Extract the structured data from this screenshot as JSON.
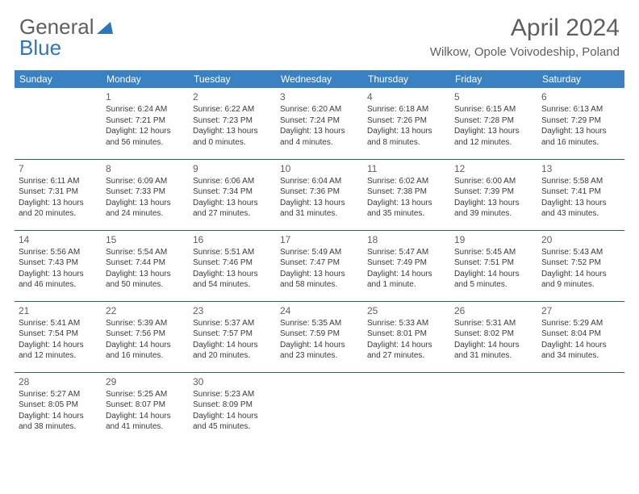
{
  "brand": {
    "part1": "General",
    "part2": "Blue"
  },
  "title": "April 2024",
  "location": "Wilkow, Opole Voivodeship, Poland",
  "colors": {
    "header_bg": "#3a81c4",
    "header_text": "#ffffff",
    "accent": "#2d76ba",
    "text_gray": "#5f5f5f",
    "body_text": "#3a3a3a",
    "border": "#285e8e"
  },
  "day_headers": [
    "Sunday",
    "Monday",
    "Tuesday",
    "Wednesday",
    "Thursday",
    "Friday",
    "Saturday"
  ],
  "weeks": [
    [
      null,
      {
        "n": "1",
        "sr": "6:24 AM",
        "ss": "7:21 PM",
        "dl": "12 hours and 56 minutes."
      },
      {
        "n": "2",
        "sr": "6:22 AM",
        "ss": "7:23 PM",
        "dl": "13 hours and 0 minutes."
      },
      {
        "n": "3",
        "sr": "6:20 AM",
        "ss": "7:24 PM",
        "dl": "13 hours and 4 minutes."
      },
      {
        "n": "4",
        "sr": "6:18 AM",
        "ss": "7:26 PM",
        "dl": "13 hours and 8 minutes."
      },
      {
        "n": "5",
        "sr": "6:15 AM",
        "ss": "7:28 PM",
        "dl": "13 hours and 12 minutes."
      },
      {
        "n": "6",
        "sr": "6:13 AM",
        "ss": "7:29 PM",
        "dl": "13 hours and 16 minutes."
      }
    ],
    [
      {
        "n": "7",
        "sr": "6:11 AM",
        "ss": "7:31 PM",
        "dl": "13 hours and 20 minutes."
      },
      {
        "n": "8",
        "sr": "6:09 AM",
        "ss": "7:33 PM",
        "dl": "13 hours and 24 minutes."
      },
      {
        "n": "9",
        "sr": "6:06 AM",
        "ss": "7:34 PM",
        "dl": "13 hours and 27 minutes."
      },
      {
        "n": "10",
        "sr": "6:04 AM",
        "ss": "7:36 PM",
        "dl": "13 hours and 31 minutes."
      },
      {
        "n": "11",
        "sr": "6:02 AM",
        "ss": "7:38 PM",
        "dl": "13 hours and 35 minutes."
      },
      {
        "n": "12",
        "sr": "6:00 AM",
        "ss": "7:39 PM",
        "dl": "13 hours and 39 minutes."
      },
      {
        "n": "13",
        "sr": "5:58 AM",
        "ss": "7:41 PM",
        "dl": "13 hours and 43 minutes."
      }
    ],
    [
      {
        "n": "14",
        "sr": "5:56 AM",
        "ss": "7:43 PM",
        "dl": "13 hours and 46 minutes."
      },
      {
        "n": "15",
        "sr": "5:54 AM",
        "ss": "7:44 PM",
        "dl": "13 hours and 50 minutes."
      },
      {
        "n": "16",
        "sr": "5:51 AM",
        "ss": "7:46 PM",
        "dl": "13 hours and 54 minutes."
      },
      {
        "n": "17",
        "sr": "5:49 AM",
        "ss": "7:47 PM",
        "dl": "13 hours and 58 minutes."
      },
      {
        "n": "18",
        "sr": "5:47 AM",
        "ss": "7:49 PM",
        "dl": "14 hours and 1 minute."
      },
      {
        "n": "19",
        "sr": "5:45 AM",
        "ss": "7:51 PM",
        "dl": "14 hours and 5 minutes."
      },
      {
        "n": "20",
        "sr": "5:43 AM",
        "ss": "7:52 PM",
        "dl": "14 hours and 9 minutes."
      }
    ],
    [
      {
        "n": "21",
        "sr": "5:41 AM",
        "ss": "7:54 PM",
        "dl": "14 hours and 12 minutes."
      },
      {
        "n": "22",
        "sr": "5:39 AM",
        "ss": "7:56 PM",
        "dl": "14 hours and 16 minutes."
      },
      {
        "n": "23",
        "sr": "5:37 AM",
        "ss": "7:57 PM",
        "dl": "14 hours and 20 minutes."
      },
      {
        "n": "24",
        "sr": "5:35 AM",
        "ss": "7:59 PM",
        "dl": "14 hours and 23 minutes."
      },
      {
        "n": "25",
        "sr": "5:33 AM",
        "ss": "8:01 PM",
        "dl": "14 hours and 27 minutes."
      },
      {
        "n": "26",
        "sr": "5:31 AM",
        "ss": "8:02 PM",
        "dl": "14 hours and 31 minutes."
      },
      {
        "n": "27",
        "sr": "5:29 AM",
        "ss": "8:04 PM",
        "dl": "14 hours and 34 minutes."
      }
    ],
    [
      {
        "n": "28",
        "sr": "5:27 AM",
        "ss": "8:05 PM",
        "dl": "14 hours and 38 minutes."
      },
      {
        "n": "29",
        "sr": "5:25 AM",
        "ss": "8:07 PM",
        "dl": "14 hours and 41 minutes."
      },
      {
        "n": "30",
        "sr": "5:23 AM",
        "ss": "8:09 PM",
        "dl": "14 hours and 45 minutes."
      },
      null,
      null,
      null,
      null
    ]
  ],
  "labels": {
    "sunrise": "Sunrise:",
    "sunset": "Sunset:",
    "daylight": "Daylight:"
  }
}
